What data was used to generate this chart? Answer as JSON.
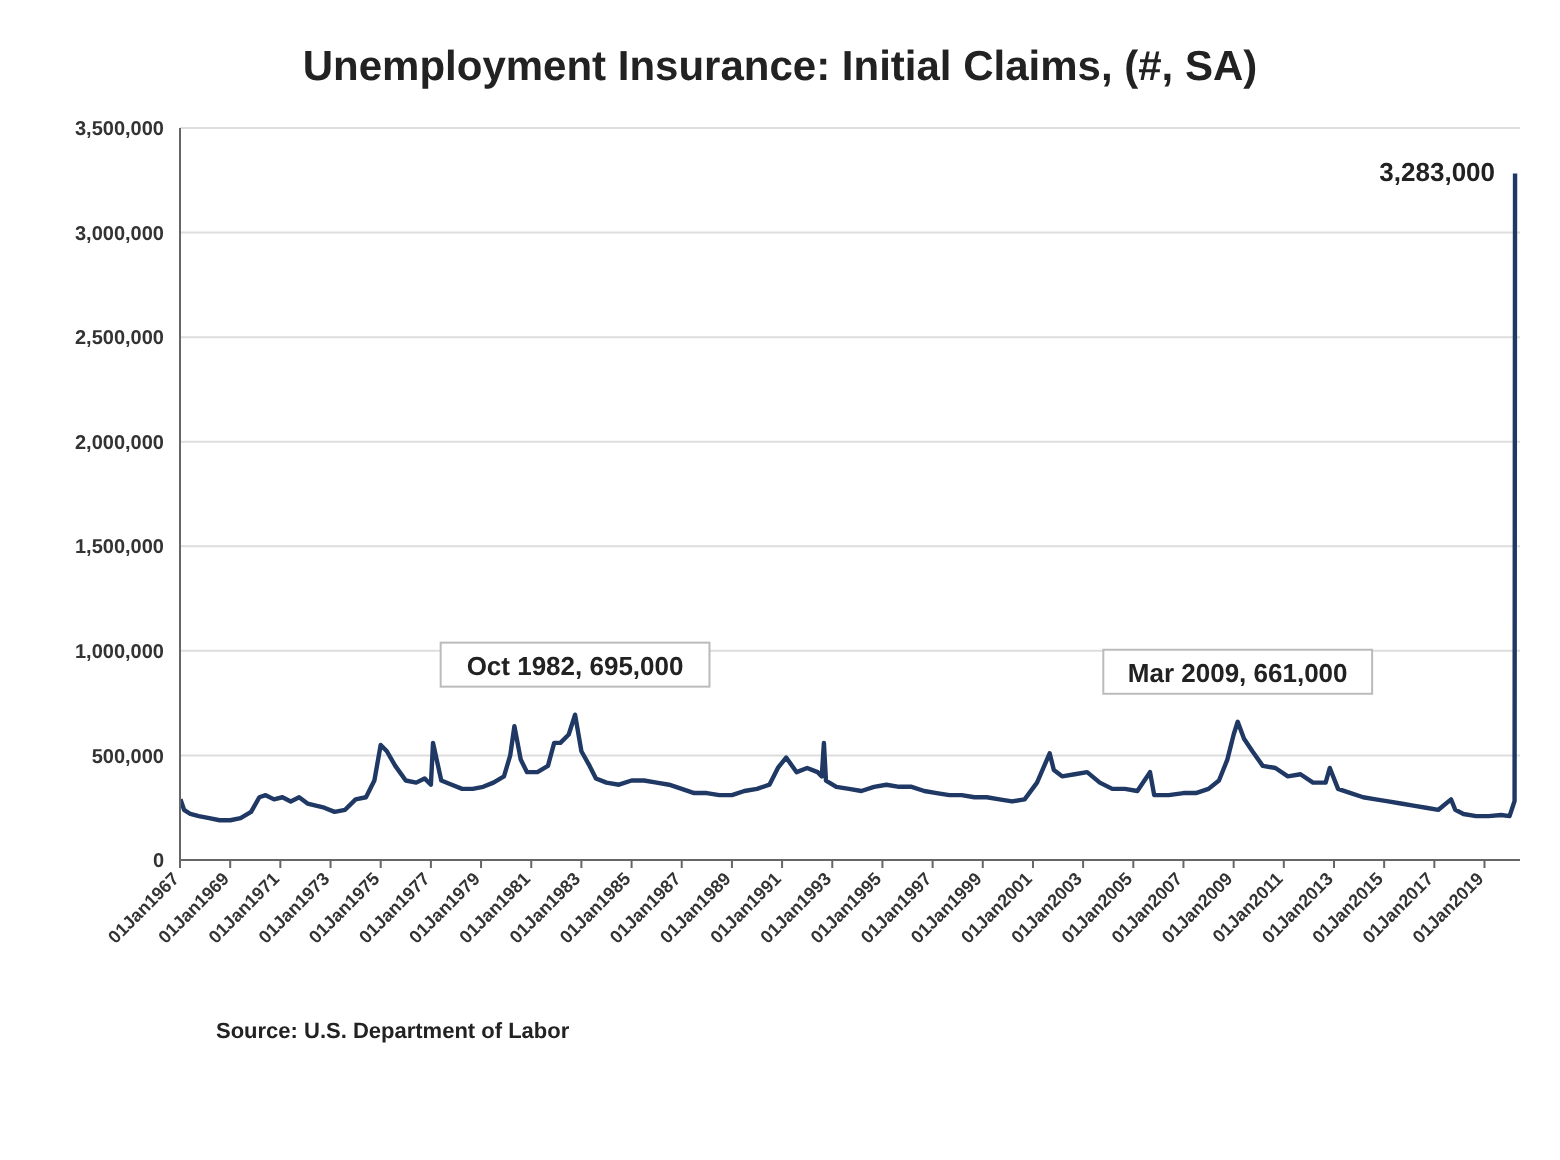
{
  "chart_data": {
    "type": "line",
    "title": "Unemployment Insurance: Initial Claims, (#, SA)",
    "x": [
      "1967-01-07",
      "1967-03",
      "1967-06",
      "1967-10",
      "1968-03",
      "1968-08",
      "1969-01",
      "1969-06",
      "1969-11",
      "1970-03",
      "1970-06",
      "1970-10",
      "1971-02",
      "1971-06",
      "1971-10",
      "1972-02",
      "1972-06",
      "1972-10",
      "1973-03",
      "1973-08",
      "1974-01",
      "1974-06",
      "1974-10",
      "1975-01",
      "1975-04",
      "1975-08",
      "1976-01",
      "1976-06",
      "1976-10",
      "1977-01",
      "1977-02",
      "1977-06",
      "1977-11",
      "1978-04",
      "1978-09",
      "1979-02",
      "1979-07",
      "1979-12",
      "1980-03",
      "1980-05",
      "1980-08",
      "1980-11",
      "1981-04",
      "1981-09",
      "1981-12",
      "1982-03",
      "1982-07",
      "1982-10",
      "1983-01",
      "1983-05",
      "1983-08",
      "1984-01",
      "1984-07",
      "1985-01",
      "1985-07",
      "1986-01",
      "1986-07",
      "1987-01",
      "1987-07",
      "1988-01",
      "1988-07",
      "1989-01",
      "1989-07",
      "1990-01",
      "1990-07",
      "1990-11",
      "1991-03",
      "1991-08",
      "1992-01",
      "1992-06",
      "1992-08",
      "1992-09",
      "1992-10",
      "1993-03",
      "1993-09",
      "1994-03",
      "1994-09",
      "1995-03",
      "1995-09",
      "1996-03",
      "1996-09",
      "1997-03",
      "1997-09",
      "1998-03",
      "1998-09",
      "1999-03",
      "1999-09",
      "2000-03",
      "2000-09",
      "2001-03",
      "2001-09",
      "2001-11",
      "2002-03",
      "2002-09",
      "2003-03",
      "2003-09",
      "2004-03",
      "2004-09",
      "2005-03",
      "2005-09",
      "2005-11",
      "2006-06",
      "2007-01",
      "2007-07",
      "2008-01",
      "2008-06",
      "2008-10",
      "2009-01",
      "2009-03",
      "2009-06",
      "2009-10",
      "2010-03",
      "2010-09",
      "2011-03",
      "2011-09",
      "2012-03",
      "2012-09",
      "2012-11",
      "2013-03",
      "2013-09",
      "2014-03",
      "2014-09",
      "2015-03",
      "2015-09",
      "2016-03",
      "2016-09",
      "2017-03",
      "2017-09",
      "2017-11",
      "2018-03",
      "2018-09",
      "2019-03",
      "2019-09",
      "2020-01",
      "2020-03-14",
      "2020-03-21"
    ],
    "values": [
      290000,
      240000,
      220000,
      210000,
      200000,
      190000,
      190000,
      200000,
      230000,
      300000,
      310000,
      290000,
      300000,
      280000,
      300000,
      270000,
      260000,
      250000,
      230000,
      240000,
      290000,
      300000,
      380000,
      550000,
      520000,
      450000,
      380000,
      370000,
      390000,
      360000,
      560000,
      380000,
      360000,
      340000,
      340000,
      350000,
      370000,
      400000,
      500000,
      640000,
      480000,
      420000,
      420000,
      450000,
      560000,
      560000,
      600000,
      695000,
      520000,
      450000,
      390000,
      370000,
      360000,
      380000,
      380000,
      370000,
      360000,
      340000,
      320000,
      320000,
      310000,
      310000,
      330000,
      340000,
      360000,
      440000,
      490000,
      420000,
      440000,
      420000,
      400000,
      560000,
      380000,
      350000,
      340000,
      330000,
      350000,
      360000,
      350000,
      350000,
      330000,
      320000,
      310000,
      310000,
      300000,
      300000,
      290000,
      280000,
      290000,
      370000,
      510000,
      430000,
      400000,
      410000,
      420000,
      370000,
      340000,
      340000,
      330000,
      420000,
      310000,
      310000,
      320000,
      320000,
      340000,
      380000,
      480000,
      600000,
      661000,
      580000,
      520000,
      450000,
      440000,
      400000,
      410000,
      370000,
      370000,
      440000,
      340000,
      320000,
      300000,
      290000,
      280000,
      270000,
      260000,
      250000,
      240000,
      290000,
      240000,
      220000,
      210000,
      210000,
      215000,
      210000,
      282000,
      3283000
    ],
    "color": "#1f3864",
    "marker": "none",
    "grid": "y",
    "xlim": [
      "1967-01-01",
      "2020-06-01"
    ],
    "xticks": [
      {
        "value": "1967-01-01",
        "label": "01Jan1967"
      },
      {
        "value": "1969-01-01",
        "label": "01Jan1969"
      },
      {
        "value": "1971-01-01",
        "label": "01Jan1971"
      },
      {
        "value": "1973-01-01",
        "label": "01Jan1973"
      },
      {
        "value": "1975-01-01",
        "label": "01Jan1975"
      },
      {
        "value": "1977-01-01",
        "label": "01Jan1977"
      },
      {
        "value": "1979-01-01",
        "label": "01Jan1979"
      },
      {
        "value": "1981-01-01",
        "label": "01Jan1981"
      },
      {
        "value": "1983-01-01",
        "label": "01Jan1983"
      },
      {
        "value": "1985-01-01",
        "label": "01Jan1985"
      },
      {
        "value": "1987-01-01",
        "label": "01Jan1987"
      },
      {
        "value": "1989-01-01",
        "label": "01Jan1989"
      },
      {
        "value": "1991-01-01",
        "label": "01Jan1991"
      },
      {
        "value": "1993-01-01",
        "label": "01Jan1993"
      },
      {
        "value": "1995-01-01",
        "label": "01Jan1995"
      },
      {
        "value": "1997-01-01",
        "label": "01Jan1997"
      },
      {
        "value": "1999-01-01",
        "label": "01Jan1999"
      },
      {
        "value": "2001-01-01",
        "label": "01Jan2001"
      },
      {
        "value": "2003-01-01",
        "label": "01Jan2003"
      },
      {
        "value": "2005-01-01",
        "label": "01Jan2005"
      },
      {
        "value": "2007-01-01",
        "label": "01Jan2007"
      },
      {
        "value": "2009-01-01",
        "label": "01Jan2009"
      },
      {
        "value": "2011-01-01",
        "label": "01Jan2011"
      },
      {
        "value": "2013-01-01",
        "label": "01Jan2013"
      },
      {
        "value": "2015-01-01",
        "label": "01Jan2015"
      },
      {
        "value": "2017-01-01",
        "label": "01Jan2017"
      },
      {
        "value": "2019-01-01",
        "label": "01Jan2019"
      }
    ],
    "ylim": [
      0,
      3500000
    ],
    "yticks": [
      {
        "value": 0,
        "label": "0"
      },
      {
        "value": 500000,
        "label": "500,000"
      },
      {
        "value": 1000000,
        "label": "1,000,000"
      },
      {
        "value": 1500000,
        "label": "1,500,000"
      },
      {
        "value": 2000000,
        "label": "2,000,000"
      },
      {
        "value": 2500000,
        "label": "2,500,000"
      },
      {
        "value": 3000000,
        "label": "3,000,000"
      },
      {
        "value": 3500000,
        "label": "3,500,000"
      }
    ],
    "legend": false,
    "annotations": [
      {
        "text": "Oct 1982, 695,000",
        "x": "1982-10",
        "y": 695000
      },
      {
        "text": "Mar 2009, 661,000",
        "x": "2009-03",
        "y": 661000
      },
      {
        "text": "3,283,000",
        "x": "2020-03-21",
        "y": 3283000
      },
      "Source: U.S. Department of Labor"
    ]
  }
}
